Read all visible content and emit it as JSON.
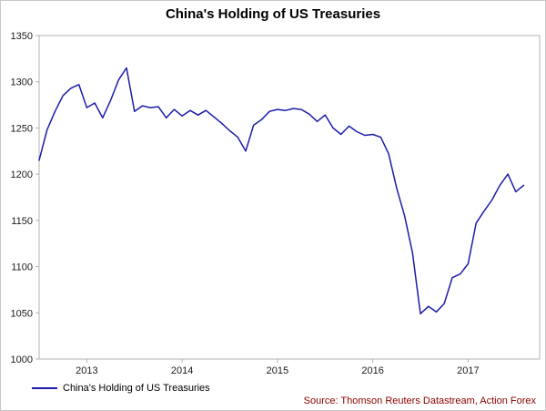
{
  "title": "China's Holding of US Treasuries",
  "legend": {
    "label": "China's Holding of US Treasuries"
  },
  "source_note": "Source: Thomson Reuters Datastream, Action Forex",
  "colors": {
    "line": "#1c1ca8",
    "source_text": "#8b0000",
    "axis": "#b3b3b3",
    "tick_text": "#1a1a1a",
    "background": "#ffffff"
  },
  "chart_data": {
    "type": "line",
    "title": "China's Holding of US Treasuries",
    "xlabel": "",
    "ylabel": "",
    "xlim": [
      2012.5,
      2017.75
    ],
    "ylim": [
      1000,
      1350
    ],
    "yticks": [
      1000,
      1050,
      1100,
      1150,
      1200,
      1250,
      1300,
      1350
    ],
    "xticks": [
      2013,
      2014,
      2015,
      2016,
      2017
    ],
    "grid": false,
    "legend_position": "bottom-left",
    "series": [
      {
        "name": "China's Holding of US Treasuries",
        "x_start": 2012.5,
        "x_step_years": 0.083333,
        "values": [
          1215,
          1248,
          1268,
          1285,
          1293,
          1297,
          1272,
          1277,
          1261,
          1280,
          1302,
          1315,
          1268,
          1274,
          1272,
          1273,
          1261,
          1270,
          1263,
          1269,
          1264,
          1269,
          1262,
          1255,
          1247,
          1240,
          1225,
          1253,
          1259,
          1268,
          1270,
          1269,
          1271,
          1270,
          1265,
          1257,
          1264,
          1250,
          1243,
          1252,
          1246,
          1242,
          1243,
          1240,
          1222,
          1185,
          1155,
          1115,
          1049,
          1057,
          1051,
          1060,
          1088,
          1092,
          1103,
          1147,
          1160,
          1172,
          1188,
          1200,
          1181,
          1188
        ]
      }
    ]
  }
}
